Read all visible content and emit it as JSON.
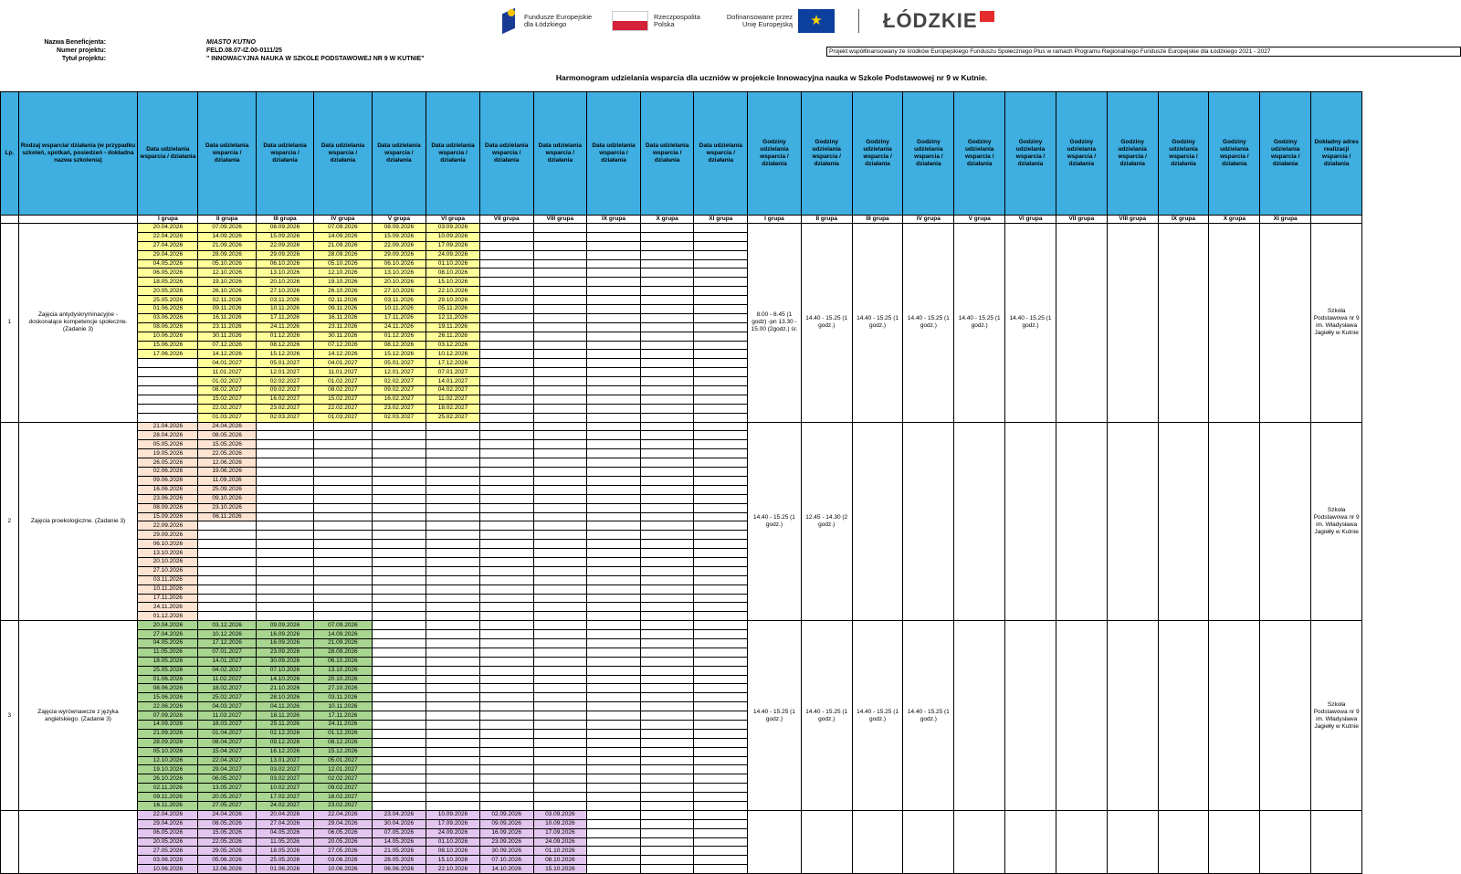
{
  "logos": {
    "fe": "Fundusze Europejskie dla Łódzkiego",
    "rp": "Rzeczpospolita Polska",
    "eu": "Dofinansowane przez Unię Europejską",
    "lodzkie": "ŁÓDZKIE"
  },
  "project_info": {
    "beneficiary_label": "Nazwa Beneficjenta:",
    "beneficiary_value": "MIASTO KUTNO",
    "number_label": "Numer projektu:",
    "number_value": "FELD.08.07-IZ.00-0111/25",
    "title_label": "Tytuł projektu:",
    "title_value": "\" INNOWACYJNA NAUKA W SZKOLE PODSTAWOWEJ NR 9  W KUTNIE\""
  },
  "cofinance_note": "Projekt współfinansowany ze środków Europejskiego Funduszu Społecznego Plus w ramach Programu Regionalnego Fundusze Europejskie dla Łódzkiego 2021 - 2027",
  "title": "Harmonogram  udzielania wsparcia dla uczniów w projekcie Innowacyjna nauka w Szkole Podstawowej nr 9 w Kutnie.",
  "headers": {
    "lp": "Lp.",
    "activity": "Rodzaj wsparcia/ działania (w przypadku szkoleń, spotkań, posiedzeń - dokładna nazwa szkolenia)",
    "date_cols": [
      "Data udzielania wsparcia / działania",
      "Data udzielania wsparcia / działania",
      "Data udzielania wsparcia / działania",
      "Data udzielania wsparcia / działania",
      "Data udzielania wsparcia / działania",
      "Data udzielania wsparcia / działania",
      "Data udzielania wsparcia / działania",
      "Data udzielania wsparcia / działania",
      "Data udzielania wsparcia / działania",
      "Data udzielania wsparcia / działania",
      "Data udzielania wsparcia / działania"
    ],
    "hour_cols": [
      "Godziny udzielania wsparcia / działania",
      "Godziny udzielania wsparcia / działania",
      "Godziny udzielania wsparcia / działania",
      "Godziny udzielania wsparcia / działania",
      "Godziny udzielania wsparcia / działania",
      "Godziny udzielania wsparcia / działania",
      "Godziny udzielania wsparcia / działania",
      "Godziny udzielania wsparcia / działania",
      "Godziny udzielania wsparcia / działania",
      "Godziny udzielania wsparcia / działania",
      "Godziny udzielania wsparcia / działania"
    ],
    "address": "Dokładny adres realizacji wsparcia / działania"
  },
  "groups": [
    "I grupa",
    "II grupa",
    "III grupa",
    "IV grupa",
    "V grupa",
    "VI grupa",
    "VII grupa",
    "VIII grupa",
    "IX grupa",
    "X grupa",
    "XI grupa"
  ],
  "sections": [
    {
      "lp": "1",
      "name": "Zajęcia antydyskryminacyjne - doskonalące kompetencje społeczne. (Zadanie 3)",
      "color": "y",
      "rows": 22,
      "dates": [
        [
          "20.04.2026",
          "22.04.2026",
          "27.04.2026",
          "29.04.2026",
          "04.05.2026",
          "06.05.2026",
          "18.05.2026",
          "20.05.2026",
          "25.05.2026",
          "01.06.2026",
          "03.06.2026",
          "08.06.2026",
          "10.06.2026",
          "15.06.2026",
          "17.06.2026"
        ],
        [
          "07.09.2026",
          "14.09.2026",
          "21.09.2026",
          "28.09.2026",
          "05.10.2026",
          "12.10.2026",
          "19.10.2026",
          "26.10.2026",
          "02.11.2026",
          "09.11.2026",
          "16.11.2026",
          "23.11.2026",
          "30.11.2026",
          "07.12.2026",
          "14.12.2026",
          "04.01.2027",
          "11.01.2027",
          "01.02.2027",
          "08.02.2027",
          "15.02.2027",
          "22.02.2027",
          "01.03.2027"
        ],
        [
          "08.09.2026",
          "15.09.2026",
          "22.09.2026",
          "29.09.2026",
          "06.10.2026",
          "13.10.2026",
          "20.10.2026",
          "27.10.2026",
          "03.11.2026",
          "10.11.2026",
          "17.11.2026",
          "24.11.2026",
          "01.12.2026",
          "08.12.2026",
          "15.12.2026",
          "05.01.2027",
          "12.01.2027",
          "02.02.2027",
          "09.02.2027",
          "16.02.2027",
          "23.02.2027",
          "02.03.2027"
        ],
        [
          "07.09.2026",
          "14.09.2026",
          "21.09.2026",
          "28.09.2026",
          "05.10.2026",
          "12.10.2026",
          "19.10.2026",
          "26.10.2026",
          "02.11.2026",
          "09.11.2026",
          "16.11.2026",
          "23.11.2026",
          "30.11.2026",
          "07.12.2026",
          "14.12.2026",
          "04.01.2027",
          "11.01.2027",
          "01.02.2027",
          "08.02.2027",
          "15.02.2027",
          "22.02.2027",
          "01.03.2027"
        ],
        [
          "08.09.2026",
          "15.09.2026",
          "22.09.2026",
          "29.09.2026",
          "06.10.2026",
          "13.10.2026",
          "20.10.2026",
          "27.10.2026",
          "03.11.2026",
          "10.11.2026",
          "17.11.2026",
          "24.11.2026",
          "01.12.2026",
          "08.12.2026",
          "15.12.2026",
          "05.01.2027",
          "12.01.2027",
          "02.02.2027",
          "09.02.2027",
          "16.02.2027",
          "23.02.2027",
          "02.03.2027"
        ],
        [
          "03.09.2026",
          "10.09.2026",
          "17.09.2026",
          "24.09.2026",
          "01.10.2026",
          "08.10.2026",
          "15.10.2026",
          "22.10.2026",
          "29.10.2026",
          "05.11.2026",
          "12.11.2026",
          "19.11.2026",
          "26.11.2026",
          "03.12.2026",
          "10.12.2026",
          "17.12.2026",
          "07.01.2027",
          "14.01.2027",
          "04.02.2027",
          "11.02.2027",
          "18.02.2027",
          "25.02.2027"
        ]
      ],
      "hours": [
        "8.00 - 8.45 (1 godz) -pn 13.30 - 15.00 (2godz.) śr.",
        "14.40 - 15.25 (1 godz.)",
        "14.40 - 15.25 (1 godz.)",
        "14.40 - 15.25 (1 godz.)",
        "14.40 - 15.25 (1 godz.)",
        "14.40 - 15.25 (1 godz.)",
        "",
        "",
        "",
        "",
        ""
      ],
      "address": "Szkoła Podstawowa nr 9 im. Władysława Jagiełły w Kutnie"
    },
    {
      "lp": "2",
      "name": "Zajęcia proekologiczne. (Zadanie 3)",
      "color": "p",
      "rows": 22,
      "dates": [
        [
          "21.04.2026",
          "28.04.2026",
          "05.05.2026",
          "19.05.2026",
          "26.05.2026",
          "02.06.2026",
          "09.06.2026",
          "16.06.2026",
          "23.06.2026",
          "08.09.2026",
          "15.09.2026",
          "22.09.2026",
          "29.09.2026",
          "06.10.2026",
          "13.10.2026",
          "20.10.2026",
          "27.10.2026",
          "03.11.2026",
          "10.11.2026",
          "17.11.2026",
          "24.11.2026",
          "01.12.2026"
        ],
        [
          "24.04.2026",
          "08.05.2026",
          "15.05.2026",
          "22.05.2026",
          "12.06.2026",
          "19.06.2026",
          "11.09.2026",
          "25.09.2026",
          "09.10.2026",
          "23.10.2026",
          "06.11.2026"
        ]
      ],
      "hours": [
        "14.40 - 15.25 (1 godz.)",
        "12.45 - 14.30 (2 godz.)",
        "",
        "",
        "",
        "",
        "",
        "",
        "",
        "",
        ""
      ],
      "address": "Szkoła Podstawowa nr 9 im. Władysława Jagiełły w Kutnie"
    },
    {
      "lp": "3",
      "name": "Zajęcia wyrównawcze z języka angielskiego. (Zadanie 3)",
      "color": "g",
      "rows": 21,
      "dates": [
        [
          "20.04.2026",
          "27.04.2026",
          "04.05.2026",
          "11.05.2026",
          "18.05.2026",
          "25.05.2026",
          "01.06.2026",
          "08.06.2026",
          "15.06.2026",
          "22.06.2026",
          "07.09.2026",
          "14.09.2026",
          "21.09.2026",
          "28.09.2026",
          "05.10.2026",
          "12.10.2026",
          "19.10.2026",
          "26.10.2026",
          "02.11.2026",
          "09.11.2026",
          "16.11.2026"
        ],
        [
          "03.12.2026",
          "10.12.2026",
          "17.12.2026",
          "07.01.2027",
          "14.01.2027",
          "04.02.2027",
          "11.02.2027",
          "18.02.2027",
          "25.02.2027",
          "04.03.2027",
          "11.03.2027",
          "18.03.2027",
          "01.04.2027",
          "08.04.2027",
          "15.04.2027",
          "22.04.2027",
          "29.04.2027",
          "06.05.2027",
          "13.05.2027",
          "20.05.2027",
          "27.05.2027"
        ],
        [
          "09.09.2026",
          "16.09.2026",
          "16.09.2026",
          "23.09.2026",
          "30.09.2026",
          "07.10.2026",
          "14.10.2026",
          "21.10.2026",
          "28.10.2026",
          "04.11.2026",
          "18.11.2026",
          "25.11.2026",
          "02.12.2026",
          "09.12.2026",
          "16.12.2026",
          "13.01.2027",
          "03.02.2027",
          "03.02.2027",
          "10.02.2027",
          "17.02.2027",
          "24.02.2027"
        ],
        [
          "07.09.2026",
          "14.09.2026",
          "21.09.2026",
          "28.09.2026",
          "06.10.2026",
          "13.10.2026",
          "20.10.2026",
          "27.10.2026",
          "03.11.2026",
          "10.11.2026",
          "17.11.2026",
          "24.11.2026",
          "01.12.2026",
          "08.12.2026",
          "15.12.2026",
          "05.01.2027",
          "12.01.2027",
          "02.02.2027",
          "09.02.2027",
          "16.02.2027",
          "23.02.2027"
        ]
      ],
      "hours": [
        "14.40 - 15.25 (1 godz.)",
        "14.40 - 15.25 (1 godz.)",
        "14.40 - 15.25 (1 godz.)",
        "14.40 - 15.25 (1 godz.)",
        "",
        "",
        "",
        "",
        "",
        "",
        ""
      ],
      "address": "Szkoła Podstawowa nr 9 im. Władysława Jagiełły w Kutnie"
    },
    {
      "lp": "",
      "name": "",
      "color": "v",
      "rows": 7,
      "dates": [
        [
          "22.04.2026",
          "29.04.2026",
          "06.05.2026",
          "20.05.2026",
          "27.05.2026",
          "03.06.2026",
          "10.06.2026"
        ],
        [
          "24.04.2026",
          "08.05.2026",
          "15.05.2026",
          "22.05.2026",
          "29.05.2026",
          "05.06.2026",
          "12.06.2026"
        ],
        [
          "20.04.2026",
          "27.04.2026",
          "04.05.2026",
          "11.05.2026",
          "18.05.2026",
          "25.05.2026",
          "01.06.2026"
        ],
        [
          "22.04.2026",
          "29.04.2026",
          "06.05.2026",
          "20.05.2026",
          "27.05.2026",
          "03.06.2026",
          "10.06.2026"
        ],
        [
          "23.04.2026",
          "30.04.2026",
          "07.05.2026",
          "14.05.2026",
          "21.05.2026",
          "28.05.2026",
          "06.06.2026"
        ],
        [
          "10.09.2026",
          "17.09.2026",
          "24.09.2026",
          "01.10.2026",
          "08.10.2026",
          "15.10.2026",
          "22.10.2026"
        ],
        [
          "02.09.2026",
          "09.09.2026",
          "16.09.2026",
          "23.09.2026",
          "30.09.2026",
          "07.10.2026",
          "14.10.2026"
        ],
        [
          "03.09.2026",
          "10.09.2026",
          "17.09.2026",
          "24.09.2026",
          "01.10.2026",
          "08.10.2026",
          "15.10.2026"
        ]
      ],
      "hours": [
        "",
        "",
        "",
        "",
        "",
        "",
        "",
        "",
        "",
        "",
        ""
      ],
      "address": ""
    }
  ]
}
